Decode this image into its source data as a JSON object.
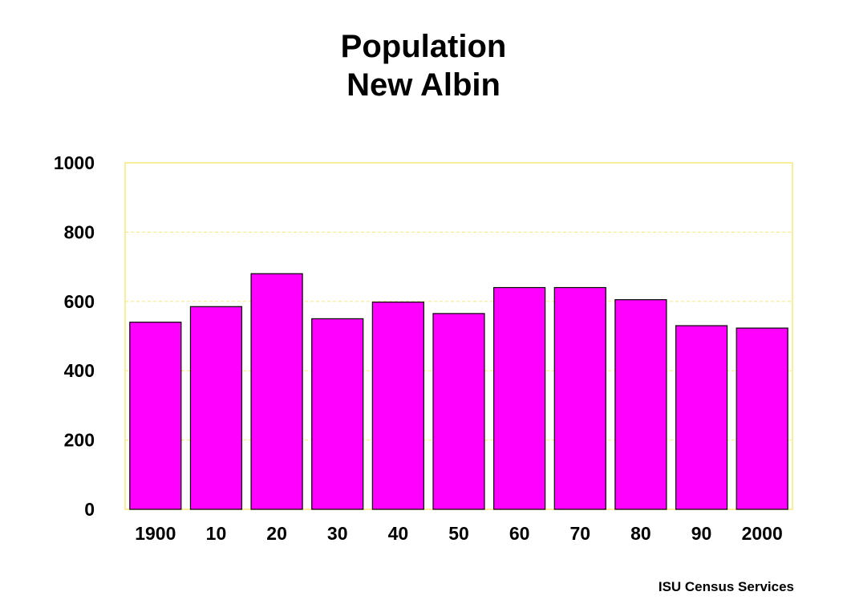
{
  "chart_data": {
    "type": "bar",
    "title": "Population",
    "subtitle": "New Albin",
    "categories": [
      "1900",
      "10",
      "20",
      "30",
      "40",
      "50",
      "60",
      "70",
      "80",
      "90",
      "2000"
    ],
    "series": [
      {
        "values": [
          540,
          585,
          680,
          550,
          598,
          565,
          640,
          640,
          605,
          530,
          523
        ]
      }
    ],
    "ylim": [
      0,
      1000
    ],
    "yticks": [
      "0",
      "200",
      "400",
      "600",
      "800",
      "1000"
    ],
    "xlabel": "",
    "ylabel": "",
    "grid": true,
    "colors": {
      "bar": "#ff00ff",
      "bar_outline": "#000000",
      "gridline": "#f5e87a",
      "plot_border": "#f5e87a"
    }
  },
  "credit": "ISU Census Services"
}
